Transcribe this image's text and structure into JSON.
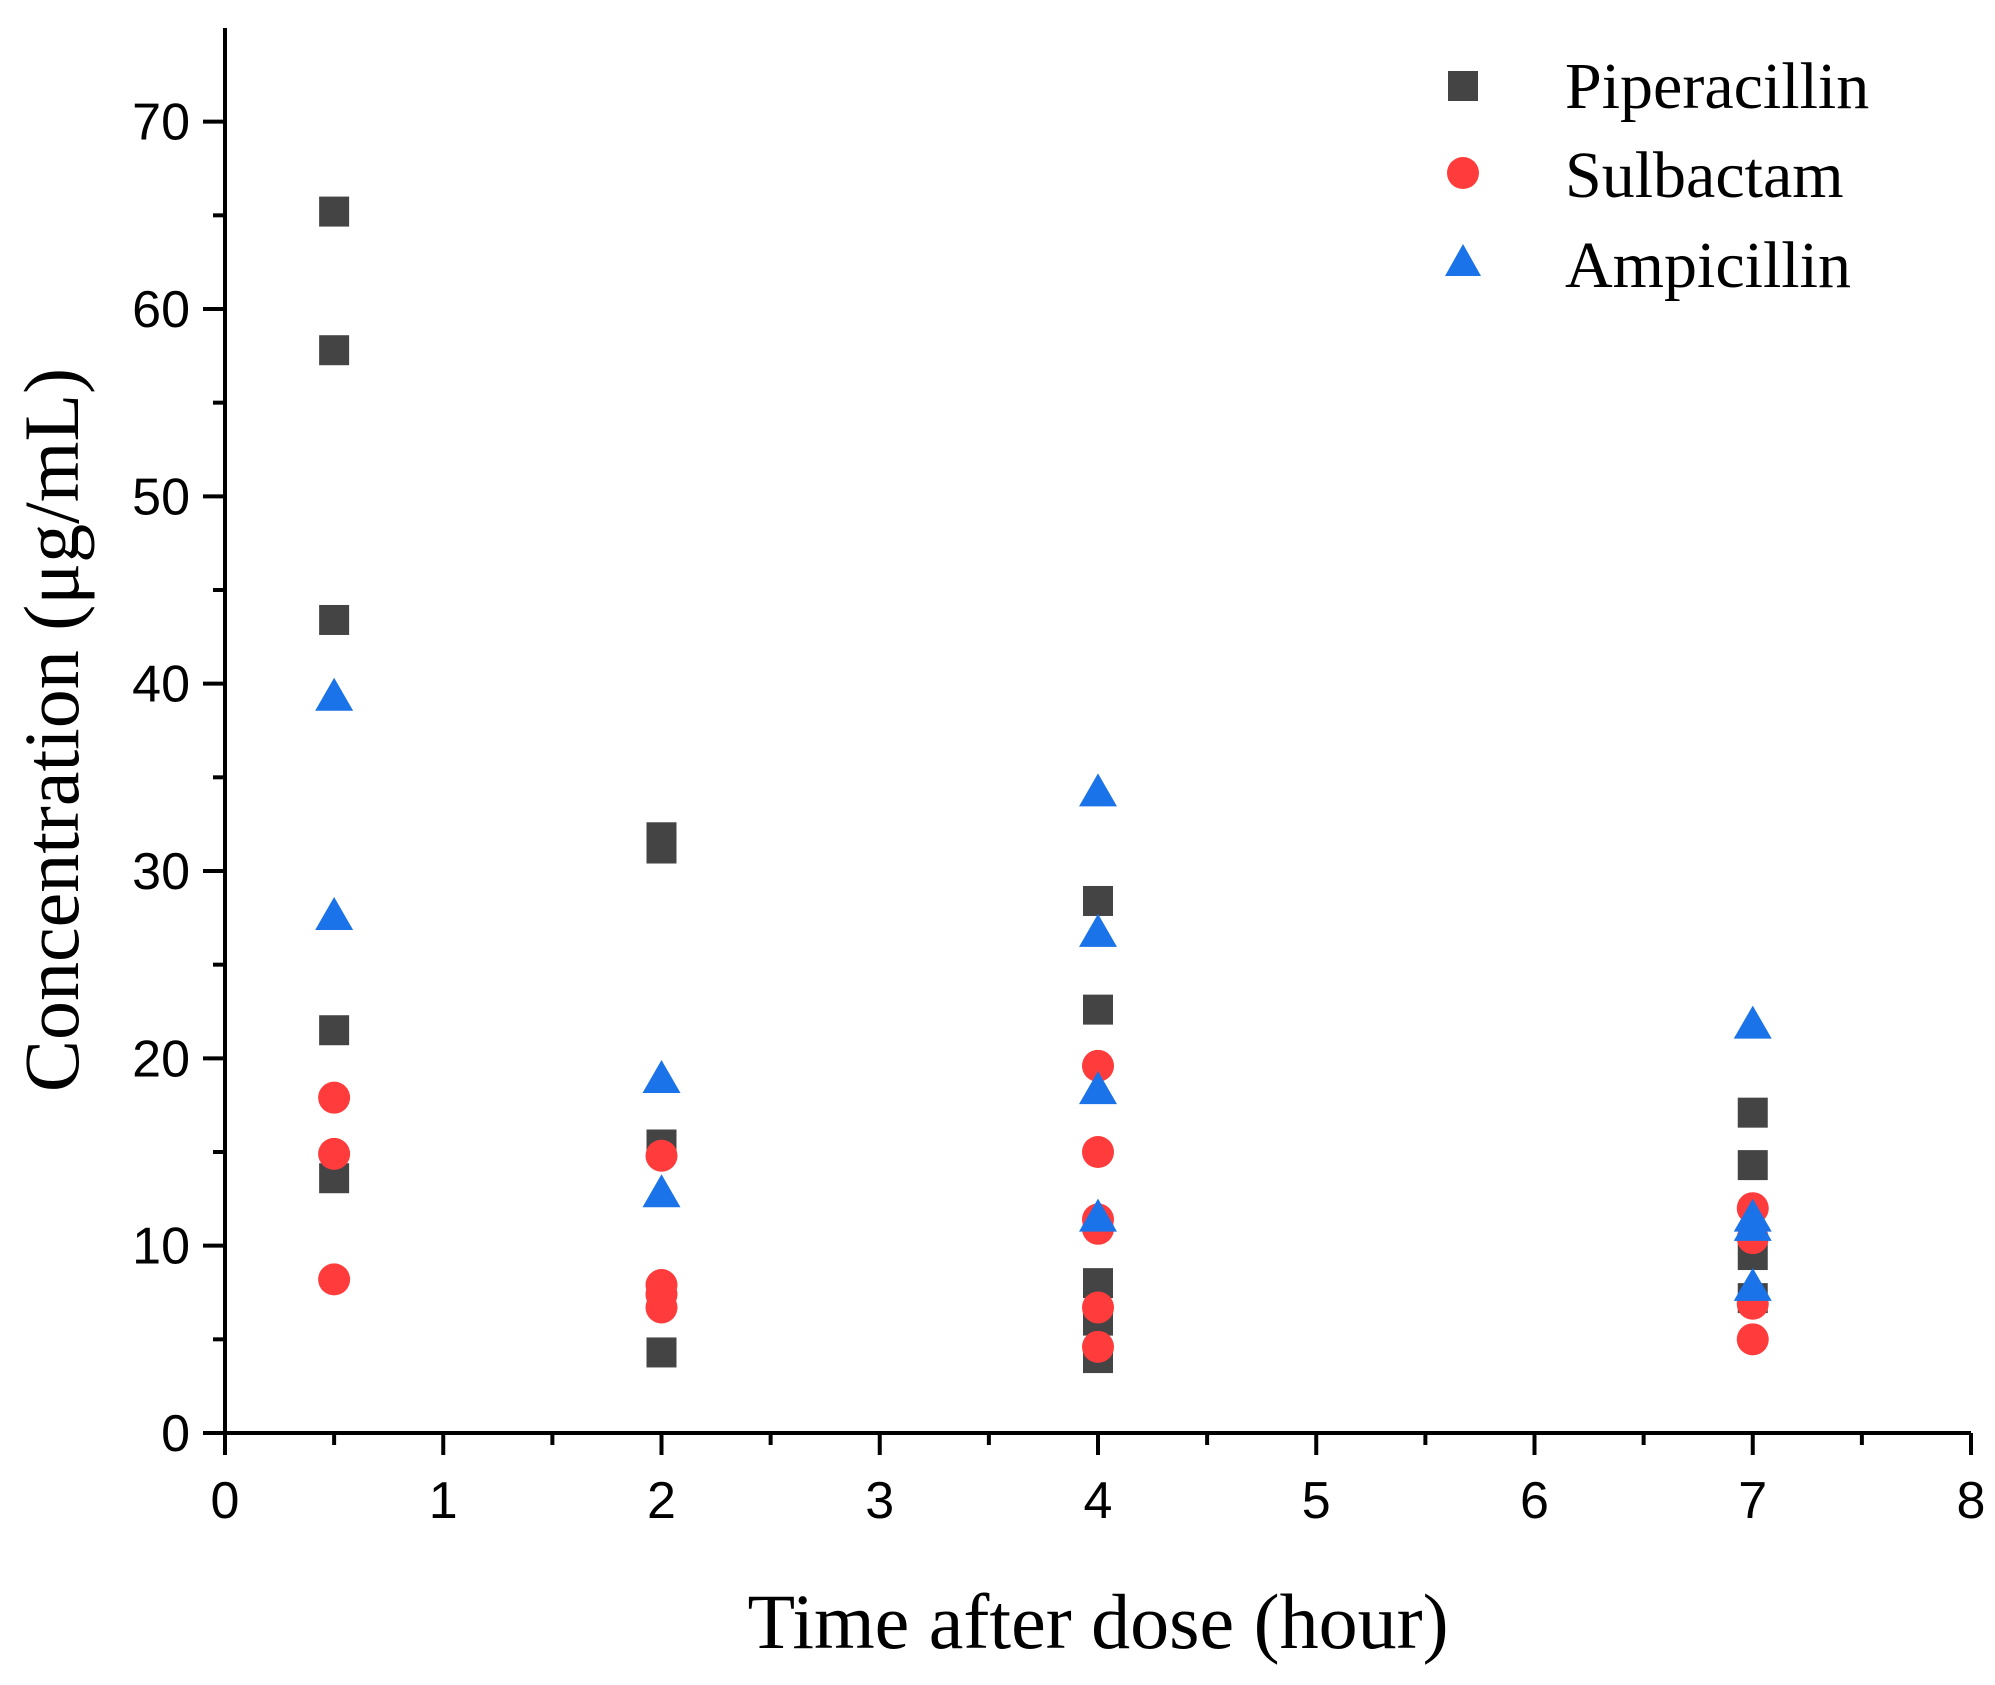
{
  "chart_data": {
    "type": "scatter",
    "title": "",
    "xlabel": "Time after dose (hour)",
    "ylabel": "Concentration (μg/mL)",
    "xlim": [
      0,
      8
    ],
    "ylim": [
      0,
      75
    ],
    "x_ticks": [
      "0",
      "1",
      "2",
      "3",
      "4",
      "5",
      "6",
      "7",
      "8"
    ],
    "y_ticks": [
      "0",
      "10",
      "20",
      "30",
      "40",
      "50",
      "60",
      "70"
    ],
    "grid": false,
    "legend_position": "top-right",
    "series": [
      {
        "name": "Piperacillin",
        "marker": "square",
        "color": "#444444",
        "points": [
          [
            0.5,
            65.2
          ],
          [
            0.5,
            57.8
          ],
          [
            0.5,
            43.4
          ],
          [
            0.5,
            21.5
          ],
          [
            0.5,
            13.6
          ],
          [
            2,
            31.8
          ],
          [
            2,
            31.2
          ],
          [
            2,
            15.4
          ],
          [
            2,
            4.3
          ],
          [
            4,
            28.4
          ],
          [
            4,
            22.6
          ],
          [
            4,
            8.0
          ],
          [
            4,
            6.0
          ],
          [
            4,
            4.0
          ],
          [
            7,
            17.1
          ],
          [
            7,
            14.3
          ],
          [
            7,
            9.5
          ],
          [
            7,
            7.2
          ]
        ]
      },
      {
        "name": "Sulbactam",
        "marker": "circle",
        "color": "#ff3b3b",
        "points": [
          [
            0.5,
            17.9
          ],
          [
            0.5,
            14.9
          ],
          [
            0.5,
            8.2
          ],
          [
            2,
            14.8
          ],
          [
            2,
            7.9
          ],
          [
            2,
            7.4
          ],
          [
            2,
            6.7
          ],
          [
            4,
            19.6
          ],
          [
            4,
            15.0
          ],
          [
            4,
            11.4
          ],
          [
            4,
            10.9
          ],
          [
            4,
            6.7
          ],
          [
            4,
            4.6
          ],
          [
            7,
            12.0
          ],
          [
            7,
            10.4
          ],
          [
            7,
            6.9
          ],
          [
            7,
            5.0
          ]
        ]
      },
      {
        "name": "Ampicillin",
        "marker": "triangle",
        "color": "#1a73e8",
        "points": [
          [
            0.5,
            39.3
          ],
          [
            0.5,
            27.6
          ],
          [
            2,
            18.9
          ],
          [
            2,
            12.8
          ],
          [
            4,
            34.2
          ],
          [
            4,
            26.7
          ],
          [
            4,
            18.3
          ],
          [
            4,
            11.5
          ],
          [
            7,
            21.8
          ],
          [
            7,
            11.5
          ],
          [
            7,
            11.0
          ],
          [
            7,
            7.8
          ]
        ]
      }
    ]
  }
}
